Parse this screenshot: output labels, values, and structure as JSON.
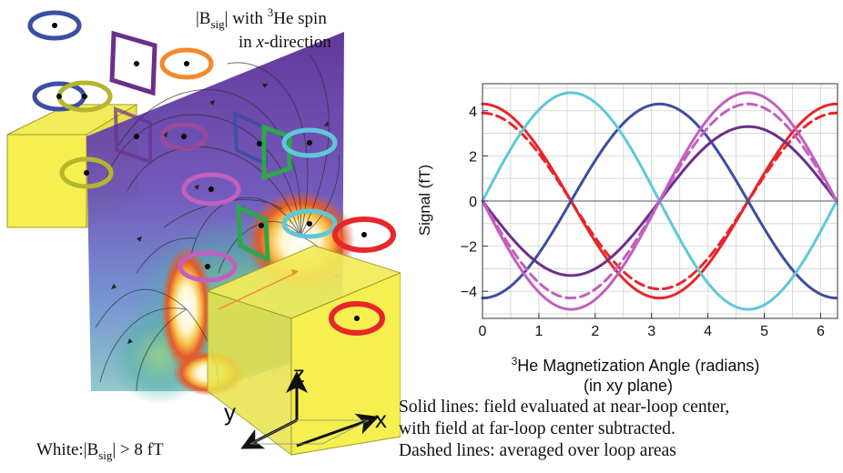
{
  "illustration": {
    "heading_line1_pre": "|B",
    "heading_line1_sub": "sig",
    "heading_line1_mid": "| with ",
    "heading_line1_sup": "3",
    "heading_line1_post": "He spin",
    "heading_line2_pre": "in ",
    "heading_line2_italic": "x",
    "heading_line2_post": "-direction",
    "legend_pre": "White:|B",
    "legend_sub": "sig",
    "legend_post": "| > 8 fT",
    "axis_x": "x",
    "axis_y": "y",
    "axis_z": "z"
  },
  "chart_data": {
    "type": "line",
    "xlabel_sup": "3",
    "xlabel_main": "He Magnetization Angle (radians)",
    "xlabel_line2": "(in xy plane)",
    "ylabel": "Signal (fT)",
    "xlim": [
      0,
      6.3
    ],
    "ylim": [
      -5.2,
      5.2
    ],
    "x_ticks": [
      "0",
      "1",
      "2",
      "3",
      "4",
      "5",
      "6"
    ],
    "y_ticks": [
      "−4",
      "−2",
      "0",
      "2",
      "4"
    ],
    "grid": true,
    "series": [
      {
        "color": "#e8262a",
        "style": "solid",
        "func": "cos",
        "amplitude": 4.3
      },
      {
        "color": "#e8262a",
        "style": "dashed",
        "func": "cos",
        "amplitude": 3.9
      },
      {
        "color": "#3b4ea3",
        "style": "solid",
        "func": "cos",
        "amplitude": -4.3
      },
      {
        "color": "#5ec8d8",
        "style": "solid",
        "func": "sin",
        "amplitude": 4.8
      },
      {
        "color": "#6a2f8a",
        "style": "solid",
        "func": "sin",
        "amplitude": -3.3
      },
      {
        "color": "#c25fbf",
        "style": "solid",
        "func": "sin",
        "amplitude": -4.8
      },
      {
        "color": "#c25fbf",
        "style": "dashed",
        "func": "sin",
        "amplitude": -4.3
      }
    ]
  },
  "caption": {
    "line1": "Solid lines: field evaluated at near-loop center,",
    "line2": "with field at far-loop center subtracted.",
    "line3": "Dashed lines: averaged over loop areas"
  }
}
